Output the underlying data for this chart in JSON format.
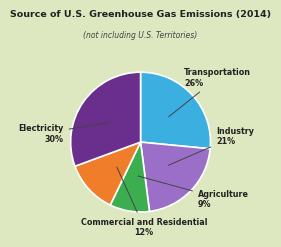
{
  "title": "Source of U.S. Greenhouse Gas Emissions (2014)",
  "subtitle": "(not including U.S. Territories)",
  "slices": [
    {
      "label": "Transportation\n26%",
      "value": 26,
      "color": "#3AAFE0"
    },
    {
      "label": "Industry\n21%",
      "value": 21,
      "color": "#9B6FC8"
    },
    {
      "label": "Agriculture\n9%",
      "value": 9,
      "color": "#3DAE4F"
    },
    {
      "label": "Commercial and Residential\n12%",
      "value": 12,
      "color": "#F07D2A"
    },
    {
      "label": "Electricity\n30%",
      "value": 30,
      "color": "#6A2E8C"
    }
  ],
  "background_color": "#DDE8C0",
  "title_fontsize": 6.8,
  "subtitle_fontsize": 5.5,
  "label_fontsize": 5.8,
  "edge_color": "#ffffff",
  "edge_lw": 1.2
}
